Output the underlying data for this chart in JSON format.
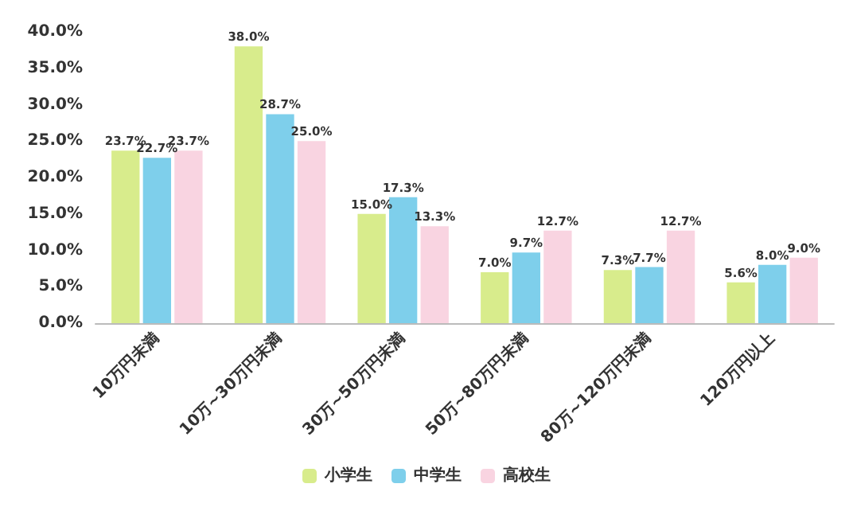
{
  "chart_data": {
    "type": "bar",
    "categories": [
      "10万円未満",
      "10万~30万円未満",
      "30万~50万円未満",
      "50万~80万円未満",
      "80万~120万円未満",
      "120万円以上"
    ],
    "series": [
      {
        "name": "小学生",
        "color": "#d8ec8c",
        "values": [
          23.7,
          38.0,
          15.0,
          7.0,
          7.3,
          5.6
        ],
        "value_labels": [
          "23.7%",
          "38.0%",
          "15.0%",
          "7.0%",
          "7.3%",
          "5.6%"
        ]
      },
      {
        "name": "中学生",
        "color": "#7ecfeb",
        "values": [
          22.7,
          28.7,
          17.3,
          9.7,
          7.7,
          8.0
        ],
        "value_labels": [
          "22.7%",
          "28.7%",
          "17.3%",
          "9.7%",
          "7.7%",
          "8.0%"
        ]
      },
      {
        "name": "高校生",
        "color": "#f9d4e1",
        "values": [
          23.7,
          25.0,
          13.3,
          12.7,
          12.7,
          9.0
        ],
        "value_labels": [
          "23.7%",
          "25.0%",
          "13.3%",
          "12.7%",
          "12.7%",
          "9.0%"
        ]
      }
    ],
    "ylim": [
      0,
      40
    ],
    "yticks": [
      {
        "value": 0,
        "label": "0.0%"
      },
      {
        "value": 5,
        "label": "5.0%"
      },
      {
        "value": 10,
        "label": "10.0%"
      },
      {
        "value": 15,
        "label": "15.0%"
      },
      {
        "value": 20,
        "label": "20.0%"
      },
      {
        "value": 25,
        "label": "25.0%"
      },
      {
        "value": 30,
        "label": "30.0%"
      },
      {
        "value": 35,
        "label": "35.0%"
      },
      {
        "value": 40,
        "label": "40.0%"
      }
    ],
    "grid": false,
    "legend": "bottom"
  }
}
